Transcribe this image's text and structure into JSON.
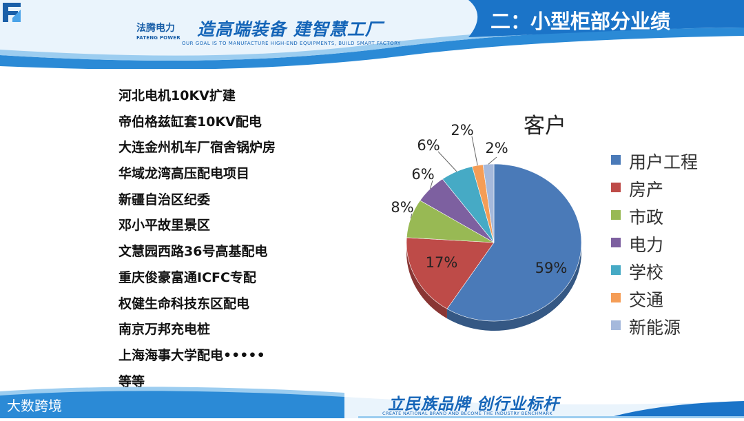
{
  "header": {
    "logo_cn": "法腾电力",
    "logo_en": "FATENG POWER",
    "slogan_cn": "造高端装备 建智慧工厂",
    "slogan_en": "OUR GOAL IS TO MANUFACTURE HIGH-END EQUIPMENTS, BUILD SMART FACTORY",
    "section_title": "二：小型柜部分业绩"
  },
  "projects": [
    "河北电机10KV扩建",
    "帝伯格兹缸套10KV配电",
    "大连金州机车厂宿舍锅炉房",
    "华域龙湾高压配电项目",
    "新疆自治区纪委",
    "邓小平故里景区",
    "文慧园西路36号高基配电",
    "重庆俊豪富通ICFC专配",
    "权健生命科技东区配电",
    "南京万邦充电桩",
    "上海海事大学配电•••••",
    "等等"
  ],
  "chart_data": {
    "type": "pie",
    "title": "客户",
    "categories": [
      "用户工程",
      "房产",
      "市政",
      "电力",
      "学校",
      "交通",
      "新能源"
    ],
    "values": [
      59,
      17,
      8,
      6,
      6,
      2,
      2
    ],
    "labels": [
      "59%",
      "17%",
      "8%",
      "6%",
      "6%",
      "2%",
      "2%"
    ],
    "colors": [
      "#4a7ab8",
      "#be4b48",
      "#98b954",
      "#7d60a0",
      "#46aac5",
      "#f59d56",
      "#a5b9dc"
    ],
    "legend_position": "right"
  },
  "footer": {
    "slogan_cn": "立民族品牌 创行业标杆",
    "slogan_en": "CREATE NATIONAL BRAND AND BECOME THE INDUSTRY BENCHMARK",
    "watermark": "大数跨境"
  }
}
